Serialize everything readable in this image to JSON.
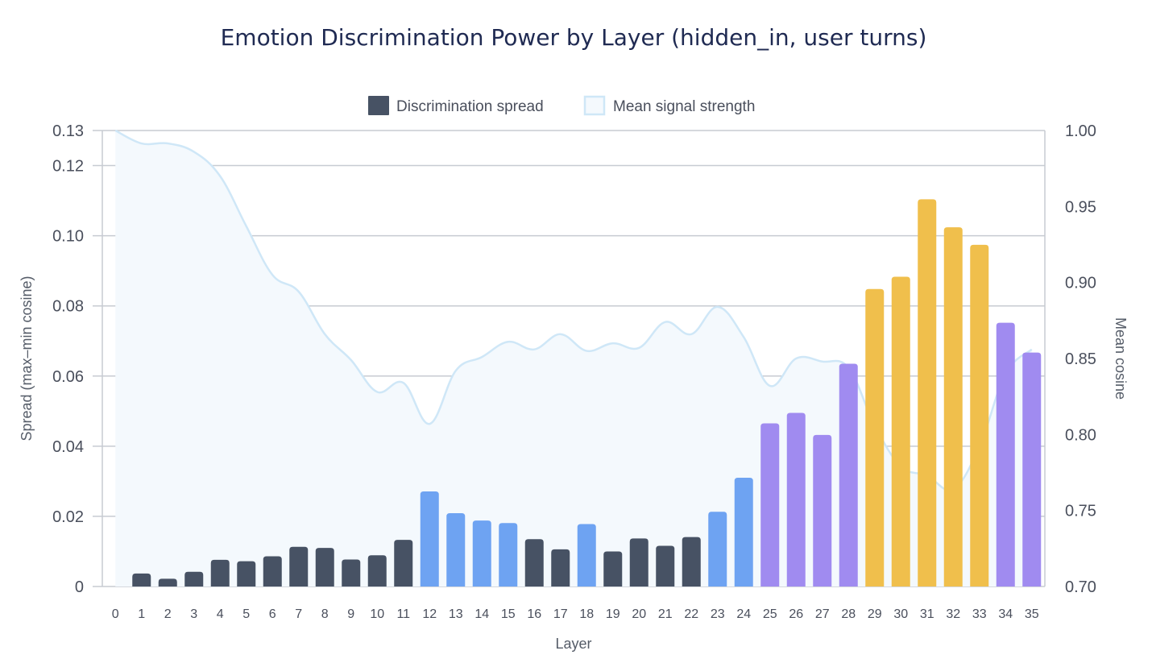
{
  "chart_data": {
    "type": "bar",
    "title": "Emotion Discrimination Power by Layer (hidden_in, user turns)",
    "xlabel": "Layer",
    "ylabel": "Spread (max–min cosine)",
    "y2label": "Mean cosine",
    "categories": [
      "0",
      "1",
      "2",
      "3",
      "4",
      "5",
      "6",
      "7",
      "8",
      "9",
      "10",
      "11",
      "12",
      "13",
      "14",
      "15",
      "16",
      "17",
      "18",
      "19",
      "20",
      "21",
      "22",
      "23",
      "24",
      "25",
      "26",
      "27",
      "28",
      "29",
      "30",
      "31",
      "32",
      "33",
      "34",
      "35"
    ],
    "ylim": [
      0,
      0.13
    ],
    "y2lim": [
      0.7,
      1.0
    ],
    "y_ticks": [
      0,
      0.02,
      0.04,
      0.06,
      0.08,
      0.1,
      0.12,
      0.13
    ],
    "y_tick_labels": [
      "0",
      "0.02",
      "0.04",
      "0.06",
      "0.08",
      "0.10",
      "0.12",
      "0.13"
    ],
    "y2_ticks": [
      0.7,
      0.75,
      0.8,
      0.85,
      0.9,
      0.95,
      1.0
    ],
    "y2_tick_labels": [
      "0.70",
      "0.75",
      "0.80",
      "0.85",
      "0.90",
      "0.95",
      "1.00"
    ],
    "legend": {
      "position": "top-center",
      "items": [
        {
          "label": "Discrimination spread",
          "color": "#475264"
        },
        {
          "label": "Mean signal strength",
          "color": "#cfe7f7"
        }
      ]
    },
    "series": [
      {
        "name": "Discrimination spread",
        "type": "bar",
        "axis": "left",
        "values": [
          0,
          0.0037,
          0.0022,
          0.0042,
          0.0076,
          0.0072,
          0.0086,
          0.0113,
          0.011,
          0.0077,
          0.0089,
          0.0133,
          0.0271,
          0.0209,
          0.0188,
          0.0181,
          0.0135,
          0.0106,
          0.0178,
          0.01,
          0.0137,
          0.0116,
          0.0141,
          0.0213,
          0.031,
          0.0465,
          0.0495,
          0.0432,
          0.0635,
          0.0848,
          0.0883,
          0.1104,
          0.1024,
          0.0974,
          0.0752,
          0.0667
        ],
        "colors": [
          "#475264",
          "#475264",
          "#475264",
          "#475264",
          "#475264",
          "#475264",
          "#475264",
          "#475264",
          "#475264",
          "#475264",
          "#475264",
          "#475264",
          "#6ea3f2",
          "#6ea3f2",
          "#6ea3f2",
          "#6ea3f2",
          "#475264",
          "#475264",
          "#6ea3f2",
          "#475264",
          "#475264",
          "#475264",
          "#475264",
          "#6ea3f2",
          "#6ea3f2",
          "#a08bf0",
          "#a08bf0",
          "#a08bf0",
          "#a08bf0",
          "#f0bf4c",
          "#f0bf4c",
          "#f0bf4c",
          "#f0bf4c",
          "#f0bf4c",
          "#a08bf0",
          "#a08bf0"
        ]
      },
      {
        "name": "Mean signal strength",
        "type": "area",
        "axis": "right",
        "values": [
          1.0,
          0.9915,
          0.9915,
          0.986,
          0.97,
          0.937,
          0.905,
          0.894,
          0.866,
          0.849,
          0.828,
          0.834,
          0.807,
          0.842,
          0.851,
          0.861,
          0.856,
          0.866,
          0.855,
          0.86,
          0.857,
          0.874,
          0.866,
          0.884,
          0.864,
          0.832,
          0.85,
          0.848,
          0.844,
          0.806,
          0.779,
          0.773,
          0.764,
          0.792,
          0.84,
          0.856
        ],
        "line_color": "#cfe7f7",
        "fill_color": "#f4f9fd"
      }
    ]
  }
}
